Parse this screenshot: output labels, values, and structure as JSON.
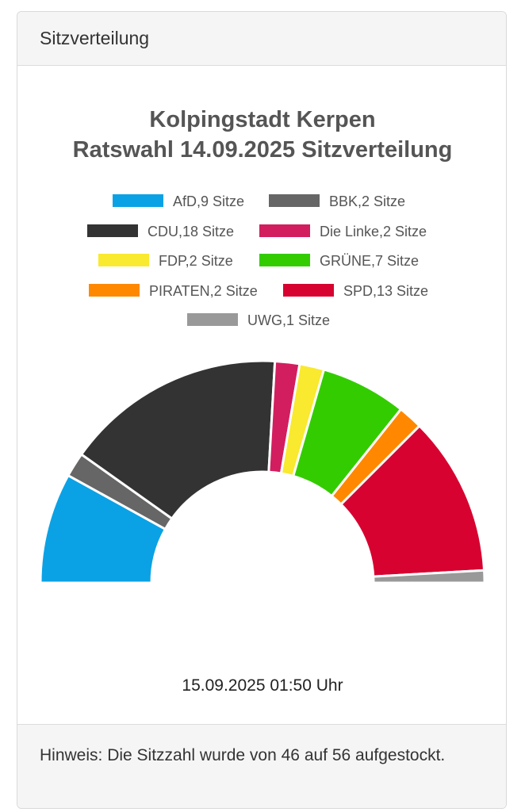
{
  "header": {
    "title": "Sitzverteilung"
  },
  "chart_data": {
    "type": "pie",
    "variant": "semicircle-parliament",
    "title": [
      "Kolpingstadt Kerpen",
      "Ratswahl 14.09.2025 Sitzverteilung"
    ],
    "legend_position": "top",
    "total_seats": 56,
    "series": [
      {
        "name": "AfD",
        "legend_label": "AfD,9 Sitze",
        "value": 9,
        "color": "#0aa2e5"
      },
      {
        "name": "BBK",
        "legend_label": "BBK,2 Sitze",
        "value": 2,
        "color": "#666666"
      },
      {
        "name": "CDU",
        "legend_label": "CDU,18 Sitze",
        "value": 18,
        "color": "#333333"
      },
      {
        "name": "Die Linke",
        "legend_label": "Die Linke,2 Sitze",
        "value": 2,
        "color": "#d21e5f"
      },
      {
        "name": "FDP",
        "legend_label": "FDP,2 Sitze",
        "value": 2,
        "color": "#f9e92f"
      },
      {
        "name": "GRÜNE",
        "legend_label": "GRÜNE,7 Sitze",
        "value": 7,
        "color": "#33cc00"
      },
      {
        "name": "PIRATEN",
        "legend_label": "PIRATEN,2 Sitze",
        "value": 2,
        "color": "#ff8800"
      },
      {
        "name": "SPD",
        "legend_label": "SPD,13 Sitze",
        "value": 13,
        "color": "#d70230"
      },
      {
        "name": "UWG",
        "legend_label": "UWG,1 Sitze",
        "value": 1,
        "color": "#999999"
      }
    ]
  },
  "timestamp": "15.09.2025 01:50 Uhr",
  "footer": {
    "note": "Hinweis: Die Sitzzahl wurde von 46 auf 56 aufgestockt."
  }
}
